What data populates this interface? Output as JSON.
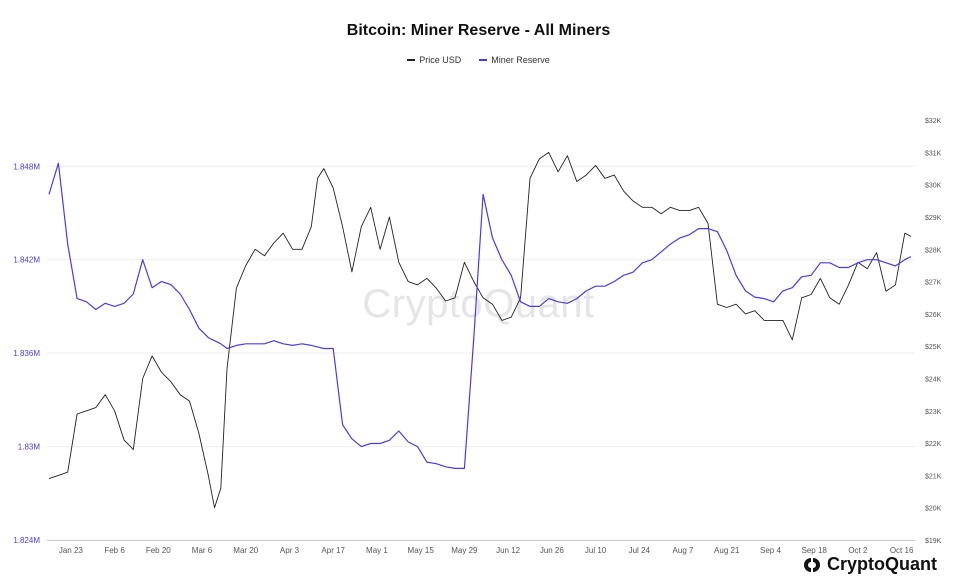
{
  "chart_data": {
    "type": "line",
    "title": "Bitcoin: Miner Reserve - All Miners",
    "legend_position": "top-center",
    "grid": "horizontal",
    "colors": {
      "price": "#222222",
      "reserve": "#4b3be3"
    },
    "x_ticks": [
      "Jan 23",
      "Feb 6",
      "Feb 20",
      "Mar 6",
      "Mar 20",
      "Apr 3",
      "Apr 17",
      "May 1",
      "May 15",
      "May 29",
      "Jun 12",
      "Jun 26",
      "Jul 10",
      "Jul 24",
      "Aug 7",
      "Aug 21",
      "Sep 4",
      "Sep 18",
      "Oct 2",
      "Oct 16"
    ],
    "left_axis": {
      "ticks": [
        "1.824M",
        "1.83M",
        "1.836M",
        "1.842M",
        "1.848M"
      ],
      "range": [
        1.824,
        1.852
      ],
      "unit": "M"
    },
    "right_axis": {
      "ticks": [
        "$19K",
        "$20K",
        "$21K",
        "$22K",
        "$23K",
        "$24K",
        "$25K",
        "$26K",
        "$27K",
        "$28K",
        "$29K",
        "$30K",
        "$31K",
        "$32K"
      ],
      "range": [
        19000,
        32500
      ]
    },
    "series": [
      {
        "name": "Price USD",
        "axis": "right",
        "x": [
          "2023-01-16",
          "2023-01-19",
          "2023-01-22",
          "2023-01-25",
          "2023-01-28",
          "2023-01-31",
          "2023-02-03",
          "2023-02-06",
          "2023-02-09",
          "2023-02-12",
          "2023-02-15",
          "2023-02-18",
          "2023-02-21",
          "2023-02-24",
          "2023-02-27",
          "2023-03-02",
          "2023-03-05",
          "2023-03-08",
          "2023-03-10",
          "2023-03-12",
          "2023-03-14",
          "2023-03-17",
          "2023-03-20",
          "2023-03-23",
          "2023-03-26",
          "2023-03-29",
          "2023-04-01",
          "2023-04-04",
          "2023-04-07",
          "2023-04-10",
          "2023-04-12",
          "2023-04-14",
          "2023-04-17",
          "2023-04-20",
          "2023-04-23",
          "2023-04-26",
          "2023-04-29",
          "2023-05-02",
          "2023-05-05",
          "2023-05-08",
          "2023-05-11",
          "2023-05-14",
          "2023-05-17",
          "2023-05-20",
          "2023-05-23",
          "2023-05-26",
          "2023-05-29",
          "2023-06-01",
          "2023-06-04",
          "2023-06-07",
          "2023-06-10",
          "2023-06-13",
          "2023-06-16",
          "2023-06-19",
          "2023-06-22",
          "2023-06-25",
          "2023-06-28",
          "2023-07-01",
          "2023-07-04",
          "2023-07-07",
          "2023-07-10",
          "2023-07-13",
          "2023-07-16",
          "2023-07-19",
          "2023-07-22",
          "2023-07-25",
          "2023-07-28",
          "2023-07-31",
          "2023-08-03",
          "2023-08-06",
          "2023-08-09",
          "2023-08-12",
          "2023-08-15",
          "2023-08-18",
          "2023-08-21",
          "2023-08-24",
          "2023-08-27",
          "2023-08-30",
          "2023-09-02",
          "2023-09-05",
          "2023-09-08",
          "2023-09-11",
          "2023-09-14",
          "2023-09-17",
          "2023-09-20",
          "2023-09-23",
          "2023-09-26",
          "2023-09-29",
          "2023-10-02",
          "2023-10-05",
          "2023-10-08",
          "2023-10-11",
          "2023-10-14",
          "2023-10-17",
          "2023-10-19"
        ],
        "values": [
          20900,
          21000,
          21100,
          22900,
          23000,
          23100,
          23500,
          23000,
          22100,
          21800,
          24000,
          24700,
          24200,
          23900,
          23500,
          23300,
          22300,
          21000,
          20000,
          20600,
          24300,
          26800,
          27500,
          28000,
          27800,
          28200,
          28500,
          28000,
          28000,
          28700,
          30200,
          30500,
          29900,
          28700,
          27300,
          28700,
          29300,
          28000,
          29000,
          27600,
          27000,
          26900,
          27100,
          26800,
          26400,
          26500,
          27600,
          27000,
          26500,
          26300,
          25800,
          25900,
          26500,
          30200,
          30800,
          31000,
          30400,
          30900,
          30100,
          30300,
          30600,
          30200,
          30300,
          29800,
          29500,
          29300,
          29300,
          29100,
          29300,
          29200,
          29200,
          29300,
          28800,
          26300,
          26200,
          26300,
          26000,
          26100,
          25800,
          25800,
          25800,
          25200,
          26500,
          26600,
          27100,
          26500,
          26300,
          26900,
          27600,
          27400,
          27900,
          26700,
          26900,
          28500,
          28400
        ]
      },
      {
        "name": "Miner Reserve",
        "axis": "left",
        "x": [
          "2023-01-16",
          "2023-01-19",
          "2023-01-22",
          "2023-01-25",
          "2023-01-28",
          "2023-01-31",
          "2023-02-03",
          "2023-02-06",
          "2023-02-09",
          "2023-02-12",
          "2023-02-15",
          "2023-02-18",
          "2023-02-21",
          "2023-02-24",
          "2023-02-27",
          "2023-03-02",
          "2023-03-05",
          "2023-03-08",
          "2023-03-10",
          "2023-03-12",
          "2023-03-14",
          "2023-03-17",
          "2023-03-20",
          "2023-03-23",
          "2023-03-26",
          "2023-03-29",
          "2023-04-01",
          "2023-04-04",
          "2023-04-07",
          "2023-04-10",
          "2023-04-12",
          "2023-04-14",
          "2023-04-17",
          "2023-04-20",
          "2023-04-23",
          "2023-04-26",
          "2023-04-29",
          "2023-05-02",
          "2023-05-05",
          "2023-05-08",
          "2023-05-11",
          "2023-05-14",
          "2023-05-17",
          "2023-05-20",
          "2023-05-23",
          "2023-05-26",
          "2023-05-29",
          "2023-06-01",
          "2023-06-04",
          "2023-06-07",
          "2023-06-10",
          "2023-06-13",
          "2023-06-16",
          "2023-06-19",
          "2023-06-22",
          "2023-06-25",
          "2023-06-28",
          "2023-07-01",
          "2023-07-04",
          "2023-07-07",
          "2023-07-10",
          "2023-07-13",
          "2023-07-16",
          "2023-07-19",
          "2023-07-22",
          "2023-07-25",
          "2023-07-28",
          "2023-07-31",
          "2023-08-03",
          "2023-08-06",
          "2023-08-09",
          "2023-08-12",
          "2023-08-15",
          "2023-08-18",
          "2023-08-21",
          "2023-08-24",
          "2023-08-27",
          "2023-08-30",
          "2023-09-02",
          "2023-09-05",
          "2023-09-08",
          "2023-09-11",
          "2023-09-14",
          "2023-09-17",
          "2023-09-20",
          "2023-09-23",
          "2023-09-26",
          "2023-09-29",
          "2023-10-02",
          "2023-10-05",
          "2023-10-08",
          "2023-10-11",
          "2023-10-14",
          "2023-10-17",
          "2023-10-19"
        ],
        "values": [
          1.8462,
          1.8482,
          1.843,
          1.8395,
          1.8393,
          1.8388,
          1.8392,
          1.839,
          1.8392,
          1.8398,
          1.842,
          1.8402,
          1.8406,
          1.8404,
          1.8398,
          1.8388,
          1.8376,
          1.837,
          1.8368,
          1.8366,
          1.8363,
          1.8365,
          1.8366,
          1.8366,
          1.8366,
          1.8368,
          1.8366,
          1.8365,
          1.8366,
          1.8365,
          1.8364,
          1.8363,
          1.8363,
          1.8314,
          1.8305,
          1.83,
          1.8302,
          1.8302,
          1.8304,
          1.831,
          1.8303,
          1.83,
          1.829,
          1.8289,
          1.8287,
          1.8286,
          1.8286,
          1.837,
          1.8462,
          1.8434,
          1.842,
          1.841,
          1.8393,
          1.839,
          1.839,
          1.8395,
          1.8393,
          1.8392,
          1.8395,
          1.84,
          1.8403,
          1.8403,
          1.8406,
          1.841,
          1.8412,
          1.8418,
          1.842,
          1.8425,
          1.843,
          1.8434,
          1.8436,
          1.844,
          1.844,
          1.8438,
          1.8426,
          1.841,
          1.84,
          1.8396,
          1.8395,
          1.8393,
          1.84,
          1.8402,
          1.8409,
          1.841,
          1.8418,
          1.8418,
          1.8415,
          1.8415,
          1.8418,
          1.842,
          1.842,
          1.8418,
          1.8416,
          1.842,
          1.8422
        ]
      }
    ]
  },
  "watermark": "CryptoQuant",
  "brand": {
    "name": "CryptoQuant"
  }
}
